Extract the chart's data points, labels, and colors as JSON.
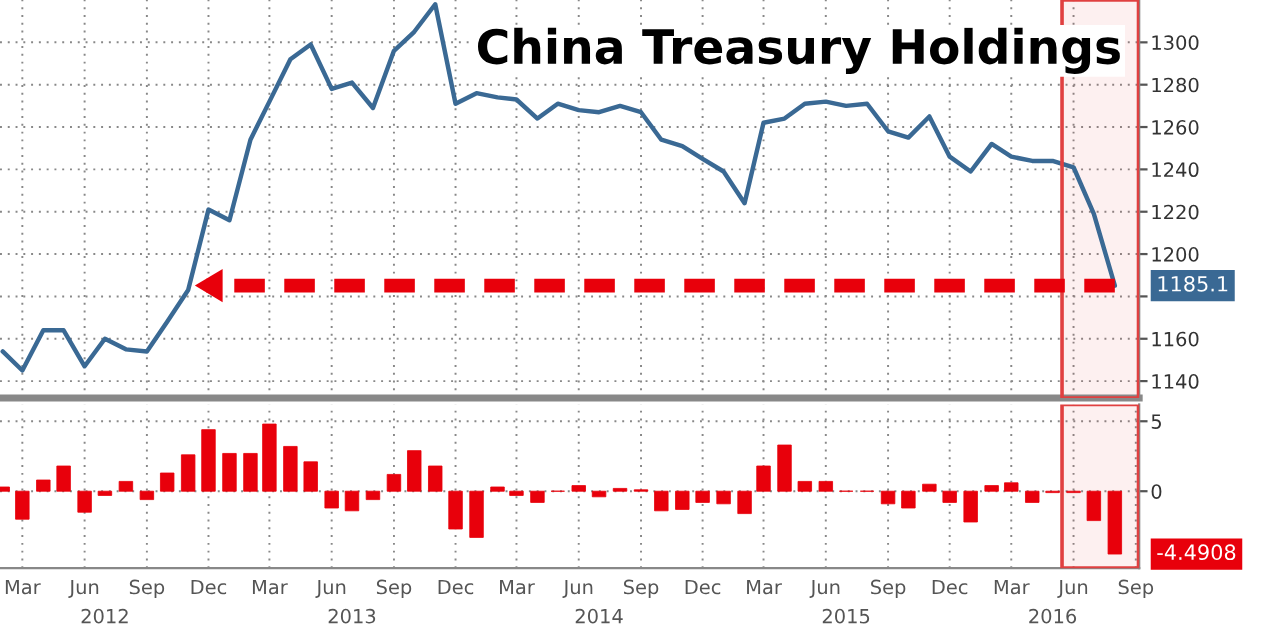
{
  "chart_data": [
    {
      "type": "line",
      "title": "China Treasury Holdings",
      "x": [
        "2012-02",
        "2012-03",
        "2012-04",
        "2012-05",
        "2012-06",
        "2012-07",
        "2012-08",
        "2012-09",
        "2012-10",
        "2012-11",
        "2012-12",
        "2013-01",
        "2013-02",
        "2013-03",
        "2013-04",
        "2013-05",
        "2013-06",
        "2013-07",
        "2013-08",
        "2013-09",
        "2013-10",
        "2013-11",
        "2013-12",
        "2014-01",
        "2014-02",
        "2014-03",
        "2014-04",
        "2014-05",
        "2014-06",
        "2014-07",
        "2014-08",
        "2014-09",
        "2014-10",
        "2014-11",
        "2014-12",
        "2015-01",
        "2015-02",
        "2015-03",
        "2015-04",
        "2015-05",
        "2015-06",
        "2015-07",
        "2015-08",
        "2015-09",
        "2015-10",
        "2015-11",
        "2015-12",
        "2016-01",
        "2016-02",
        "2016-03",
        "2016-04",
        "2016-05",
        "2016-06",
        "2016-07",
        "2016-08"
      ],
      "series": [
        {
          "color": "#3a6994",
          "values": [
            1154,
            1145,
            1164,
            1164,
            1147,
            1160,
            1155,
            1154,
            1168,
            1183,
            1221,
            1216,
            1254,
            1272,
            1292,
            1299,
            1278,
            1281,
            1269,
            1296,
            1305,
            1318,
            1271,
            1276,
            1274,
            1273,
            1264,
            1271,
            1268,
            1267,
            1270,
            1267,
            1254,
            1251,
            1245,
            1239,
            1224,
            1262,
            1264,
            1271,
            1272,
            1270,
            1271,
            1258,
            1255,
            1265,
            1246,
            1239,
            1252,
            1246,
            1244,
            1244,
            1241,
            1219,
            1185.1
          ]
        }
      ],
      "xlim": [
        "2012-01-28",
        "2016-09-06"
      ],
      "ylim": [
        1132,
        1320
      ],
      "yticks": [
        1140,
        1160,
        {
          "value": 1180,
          "label": null
        },
        1200,
        1220,
        1240,
        1260,
        1280,
        1300
      ],
      "tick_labels": "y",
      "grid": true,
      "legend": false,
      "bands": [
        {
          "axis": "x",
          "from": "2016-05-15",
          "to": "2016-09-05",
          "color": "#e04040"
        }
      ],
      "annotations": [
        {
          "text": "1185.1",
          "x": "2016-08",
          "y": 1185.1
        }
      ]
    },
    {
      "type": "bar",
      "x": [
        "2012-02",
        "2012-03",
        "2012-04",
        "2012-05",
        "2012-06",
        "2012-07",
        "2012-08",
        "2012-09",
        "2012-10",
        "2012-11",
        "2012-12",
        "2013-01",
        "2013-02",
        "2013-03",
        "2013-04",
        "2013-05",
        "2013-06",
        "2013-07",
        "2013-08",
        "2013-09",
        "2013-10",
        "2013-11",
        "2013-12",
        "2014-01",
        "2014-02",
        "2014-03",
        "2014-04",
        "2014-05",
        "2014-06",
        "2014-07",
        "2014-08",
        "2014-09",
        "2014-10",
        "2014-11",
        "2014-12",
        "2015-01",
        "2015-02",
        "2015-03",
        "2015-04",
        "2015-05",
        "2015-06",
        "2015-07",
        "2015-08",
        "2015-09",
        "2015-10",
        "2015-11",
        "2015-12",
        "2016-01",
        "2016-02",
        "2016-03",
        "2016-04",
        "2016-05",
        "2016-06",
        "2016-07",
        "2016-08"
      ],
      "series": [
        {
          "color": "#e8000b",
          "values": [
            0.3,
            -2.0,
            0.8,
            1.8,
            -1.5,
            -0.3,
            0.7,
            -0.6,
            1.3,
            2.6,
            4.4,
            2.7,
            2.7,
            4.8,
            3.2,
            2.1,
            -1.2,
            -1.4,
            -0.6,
            1.2,
            2.9,
            1.8,
            -2.7,
            -3.3,
            0.3,
            -0.3,
            -0.8,
            0,
            0.4,
            -0.4,
            0.2,
            0.1,
            -1.4,
            -1.3,
            -0.8,
            -0.9,
            -1.6,
            1.8,
            3.3,
            0.7,
            0.7,
            0,
            0,
            -0.9,
            -1.2,
            0.5,
            -0.8,
            -2.2,
            0.4,
            0.6,
            -0.8,
            -0.1,
            -0.1,
            -2.1,
            -4.4908
          ]
        }
      ],
      "xlim": [
        "2012-01-28",
        "2016-09-06"
      ],
      "ylim": [
        -5.5,
        6.2
      ],
      "yticks": [
        0,
        5
      ],
      "xticks": [
        {
          "value": "2012-03",
          "label": "Mar"
        },
        {
          "value": "2012-06",
          "label": "Jun"
        },
        {
          "value": "2012-09",
          "label": "Sep"
        },
        {
          "value": "2012-12",
          "label": "Dec"
        },
        {
          "value": "2013-03",
          "label": "Mar"
        },
        {
          "value": "2013-06",
          "label": "Jun"
        },
        {
          "value": "2013-09",
          "label": "Sep"
        },
        {
          "value": "2013-12",
          "label": "Dec"
        },
        {
          "value": "2014-03",
          "label": "Mar"
        },
        {
          "value": "2014-06",
          "label": "Jun"
        },
        {
          "value": "2014-09",
          "label": "Sep"
        },
        {
          "value": "2014-12",
          "label": "Dec"
        },
        {
          "value": "2015-03",
          "label": "Mar"
        },
        {
          "value": "2015-06",
          "label": "Jun"
        },
        {
          "value": "2015-09",
          "label": "Sep"
        },
        {
          "value": "2015-12",
          "label": "Dec"
        },
        {
          "value": "2016-03",
          "label": "Mar"
        },
        {
          "value": "2016-06",
          "label": "Jun"
        },
        {
          "value": "2016-09",
          "label": "Sep"
        }
      ],
      "x2lim": [
        "2012-01-28",
        "2016-09-06"
      ],
      "x2ticks": [
        {
          "value": "2012-07",
          "label": "2012"
        },
        {
          "value": "2013-07",
          "label": "2013"
        },
        {
          "value": "2014-07",
          "label": "2014"
        },
        {
          "value": "2015-07",
          "label": "2015"
        },
        {
          "value": "2016-05",
          "label": "2016"
        }
      ],
      "grid": true,
      "legend": false,
      "bands": [
        {
          "axis": "x",
          "from": "2016-05-15",
          "to": "2016-09-05",
          "color": "#e04040"
        }
      ],
      "annotations": [
        {
          "text": "-4.4908",
          "x": "2016-08",
          "y": -4.4908
        }
      ]
    }
  ]
}
